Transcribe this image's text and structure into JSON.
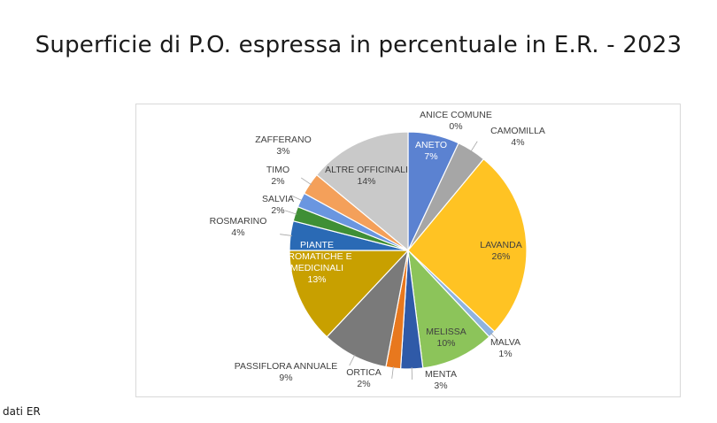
{
  "slide": {
    "title": "Superficie di P.O. espressa in percentuale in E.R. - 2023",
    "source_note": "dati ER"
  },
  "chart_data": {
    "type": "pie",
    "title": "",
    "legend": "none",
    "slices": [
      {
        "name": "ANETO",
        "value": 7,
        "label": "7%",
        "color": "#5b82d1"
      },
      {
        "name": "CAMOMILLA",
        "value": 4,
        "label": "4%",
        "color": "#a6a6a6"
      },
      {
        "name": "LAVANDA",
        "value": 26,
        "label": "26%",
        "color": "#ffc323"
      },
      {
        "name": "MALVA",
        "value": 1,
        "label": "1%",
        "color": "#8fb3e0"
      },
      {
        "name": "MELISSA",
        "value": 10,
        "label": "10%",
        "color": "#8cc45a"
      },
      {
        "name": "MENTA",
        "value": 3,
        "label": "3%",
        "color": "#2f5aa8"
      },
      {
        "name": "ORTICA",
        "value": 2,
        "label": "2%",
        "color": "#e8781e"
      },
      {
        "name": "PASSIFLORA ANNUALE",
        "value": 9,
        "label": "9%",
        "color": "#7a7a7a"
      },
      {
        "name": "PIANTE AROMATICHE E MEDICINALI",
        "value": 13,
        "label": "13%",
        "color": "#c8a000"
      },
      {
        "name": "ROSMARINO",
        "value": 4,
        "label": "4%",
        "color": "#2a6ab5"
      },
      {
        "name": "SALVIA",
        "value": 2,
        "label": "2%",
        "color": "#3f8f35"
      },
      {
        "name": "TIMO",
        "value": 2,
        "label": "2%",
        "color": "#6a96e0"
      },
      {
        "name": "ZAFFERANO",
        "value": 3,
        "label": "3%",
        "color": "#f4a05a"
      },
      {
        "name": "ALTRE OFFICINALI",
        "value": 14,
        "label": "14%",
        "color": "#c9c9c9"
      },
      {
        "name": "ANICE COMUNE",
        "value": 0,
        "label": "0%",
        "color": "#1f3f80"
      }
    ]
  }
}
